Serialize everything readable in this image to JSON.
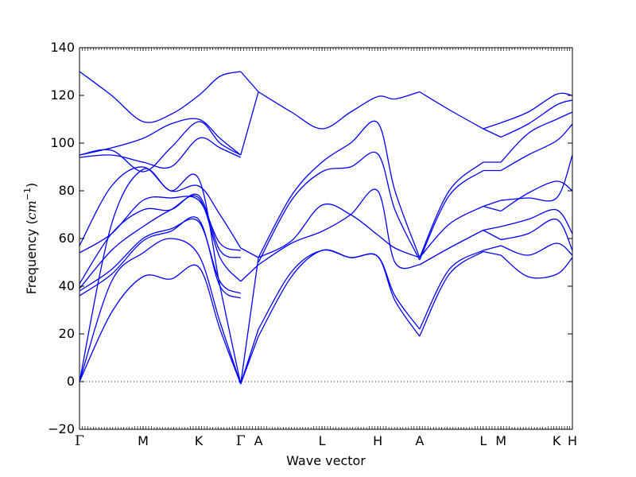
{
  "chart_data": {
    "type": "line",
    "title": "",
    "xlabel": "Wave vector",
    "ylabel_prefix": "Frequency (",
    "ylabel_unit_base": "cm",
    "ylabel_unit_exp": "−1",
    "ylabel_suffix": ")",
    "ylim": [
      -20,
      140
    ],
    "xlim": [
      0,
      10
    ],
    "y_ticks": [
      -20,
      0,
      20,
      40,
      60,
      80,
      100,
      120,
      140
    ],
    "y_tick_labels": [
      "−20",
      "0",
      "20",
      "40",
      "60",
      "80",
      "100",
      "120",
      "140"
    ],
    "grid": false,
    "line_color": "#0000ff",
    "zero_line_color": "#0000ff",
    "high_symmetry_points": [
      {
        "label": "Γ",
        "x": 0.0
      },
      {
        "label": "M",
        "x": 1.29
      },
      {
        "label": "K",
        "x": 2.42
      },
      {
        "label": "Γ",
        "x": 3.27
      },
      {
        "label": "A",
        "x": 3.63
      },
      {
        "label": "L",
        "x": 4.92
      },
      {
        "label": "H",
        "x": 6.05
      },
      {
        "label": "A",
        "x": 6.9
      },
      {
        "label": "L",
        "x": 8.19
      },
      {
        "label": "M",
        "x": 8.55
      },
      {
        "label": "K",
        "x": 9.68
      },
      {
        "label": "H",
        "x": 10.0
      }
    ],
    "series": [
      {
        "x": [
          0,
          0.65,
          1.29,
          1.85,
          2.42,
          2.85,
          3.27
        ],
        "y": [
          0,
          29,
          44,
          43,
          48,
          22,
          -1
        ]
      },
      {
        "x": [
          0,
          0.65,
          1.29,
          1.85,
          2.42,
          2.85,
          3.27
        ],
        "y": [
          0,
          42,
          54,
          60,
          53,
          25,
          -1
        ]
      },
      {
        "x": [
          0,
          0.65,
          1.29,
          1.85,
          2.42,
          2.85,
          3.27
        ],
        "y": [
          0,
          66,
          89,
          80,
          85,
          40,
          -1
        ]
      },
      {
        "x": [
          0,
          0.65,
          1.29,
          1.85,
          2.42,
          2.85,
          3.27
        ],
        "y": [
          36,
          45,
          59,
          63,
          68,
          40,
          35
        ]
      },
      {
        "x": [
          0,
          0.65,
          1.29,
          1.85,
          2.42,
          2.85,
          3.27
        ],
        "y": [
          38,
          47,
          60,
          64,
          67,
          42,
          37
        ]
      },
      {
        "x": [
          0,
          0.65,
          1.29,
          1.85,
          2.42,
          2.85,
          3.27
        ],
        "y": [
          39,
          55,
          65,
          72,
          77,
          52,
          42
        ]
      },
      {
        "x": [
          0,
          0.65,
          1.29,
          1.85,
          2.42,
          2.85,
          3.27
        ],
        "y": [
          41,
          62,
          72,
          72,
          78,
          55,
          52
        ]
      },
      {
        "x": [
          0,
          0.65,
          1.29,
          1.85,
          2.42,
          2.85,
          3.27
        ],
        "y": [
          54,
          62,
          76,
          77,
          76,
          58,
          55
        ]
      },
      {
        "x": [
          0,
          0.65,
          1.29,
          1.85,
          2.42,
          2.85,
          3.27
        ],
        "y": [
          57,
          82,
          90,
          80,
          82,
          70,
          56
        ]
      },
      {
        "x": [
          0,
          0.65,
          1.29,
          1.85,
          2.42,
          2.85,
          3.27
        ],
        "y": [
          94,
          95,
          92,
          90,
          102,
          98,
          94
        ]
      },
      {
        "x": [
          0,
          0.65,
          1.29,
          1.85,
          2.42,
          2.85,
          3.27
        ],
        "y": [
          95,
          97,
          88,
          98,
          109,
          100,
          95
        ]
      },
      {
        "x": [
          0,
          0.65,
          1.29,
          1.85,
          2.42,
          2.85,
          3.27
        ],
        "y": [
          95,
          98,
          102,
          108,
          110,
          102,
          95
        ]
      },
      {
        "x": [
          0,
          0.65,
          1.29,
          1.85,
          2.42,
          2.85,
          3.27
        ],
        "y": [
          130,
          120,
          109,
          112,
          120,
          128,
          130
        ]
      },
      {
        "x": [
          3.27,
          3.63
        ],
        "y": [
          130,
          121.5
        ]
      },
      {
        "x": [
          3.27,
          3.63
        ],
        "y": [
          95,
          121.5
        ]
      },
      {
        "x": [
          3.27,
          3.63
        ],
        "y": [
          56,
          52
        ]
      },
      {
        "x": [
          3.27,
          3.63
        ],
        "y": [
          -1,
          52
        ]
      },
      {
        "x": [
          3.27,
          3.63
        ],
        "y": [
          42,
          49
        ]
      },
      {
        "x": [
          3.27,
          3.63
        ],
        "y": [
          -1,
          22
        ]
      },
      {
        "x": [
          3.27,
          3.63
        ],
        "y": [
          -1,
          19
        ]
      },
      {
        "x": [
          3.63,
          4.3,
          4.92,
          5.5,
          6.05,
          6.4,
          6.9
        ],
        "y": [
          121.5,
          113,
          106,
          113,
          119.5,
          118.5,
          121.5
        ]
      },
      {
        "x": [
          3.63,
          4.3,
          4.92,
          5.5,
          6.05,
          6.4,
          6.9
        ],
        "y": [
          52,
          78,
          92,
          100,
          108.5,
          80,
          52
        ]
      },
      {
        "x": [
          3.63,
          4.3,
          4.92,
          5.5,
          6.05,
          6.4,
          6.9
        ],
        "y": [
          50,
          76,
          88,
          90,
          95.5,
          72,
          51
        ]
      },
      {
        "x": [
          3.63,
          4.3,
          4.92,
          5.5,
          6.05,
          6.4,
          6.9
        ],
        "y": [
          52,
          59,
          74,
          70,
          61.5,
          56,
          52
        ]
      },
      {
        "x": [
          3.63,
          4.3,
          4.92,
          5.5,
          6.05,
          6.4,
          6.9
        ],
        "y": [
          49,
          58,
          63,
          70,
          80,
          50,
          49
        ]
      },
      {
        "x": [
          3.63,
          4.3,
          4.92,
          5.5,
          6.05,
          6.4,
          6.9
        ],
        "y": [
          22,
          46,
          55,
          52,
          52.5,
          36,
          22
        ]
      },
      {
        "x": [
          3.63,
          4.3,
          4.92,
          5.5,
          6.05,
          6.4,
          6.9
        ],
        "y": [
          19,
          44,
          55,
          52,
          52.5,
          34,
          19
        ]
      },
      {
        "x": [
          6.9,
          7.5,
          8.19
        ],
        "y": [
          121.5,
          114,
          106
        ]
      },
      {
        "x": [
          6.9,
          7.5,
          8.19
        ],
        "y": [
          52,
          80,
          92
        ]
      },
      {
        "x": [
          6.9,
          7.5,
          8.19
        ],
        "y": [
          51,
          78,
          88.5
        ]
      },
      {
        "x": [
          6.9,
          7.5,
          8.19
        ],
        "y": [
          52,
          66,
          73.5
        ]
      },
      {
        "x": [
          6.9,
          7.5,
          8.19
        ],
        "y": [
          49,
          56,
          63.5
        ]
      },
      {
        "x": [
          6.9,
          7.5,
          8.19
        ],
        "y": [
          22,
          47,
          55
        ]
      },
      {
        "x": [
          6.9,
          7.5,
          8.19
        ],
        "y": [
          19,
          45,
          54.5
        ]
      },
      {
        "x": [
          8.19,
          8.55
        ],
        "y": [
          106,
          108.5
        ]
      },
      {
        "x": [
          8.19,
          8.55
        ],
        "y": [
          106,
          102.5
        ]
      },
      {
        "x": [
          8.19,
          8.55
        ],
        "y": [
          92,
          92
        ]
      },
      {
        "x": [
          8.19,
          8.55
        ],
        "y": [
          88.5,
          88.5
        ]
      },
      {
        "x": [
          8.19,
          8.55
        ],
        "y": [
          73.5,
          76
        ]
      },
      {
        "x": [
          8.19,
          8.55
        ],
        "y": [
          73.5,
          71.5
        ]
      },
      {
        "x": [
          8.19,
          8.55
        ],
        "y": [
          63.5,
          65
        ]
      },
      {
        "x": [
          8.19,
          8.55
        ],
        "y": [
          63.5,
          59.5
        ]
      },
      {
        "x": [
          8.19,
          8.55
        ],
        "y": [
          55,
          57
        ]
      },
      {
        "x": [
          8.19,
          8.55
        ],
        "y": [
          54.5,
          53
        ]
      },
      {
        "x": [
          8.55,
          9.1,
          9.68,
          10.0
        ],
        "y": [
          108.5,
          113,
          120.5,
          120
        ]
      },
      {
        "x": [
          8.55,
          9.1,
          9.68,
          10.0
        ],
        "y": [
          102.5,
          108,
          116,
          118
        ]
      },
      {
        "x": [
          8.55,
          9.1,
          9.68,
          10.0
        ],
        "y": [
          92,
          104,
          110,
          113
        ]
      },
      {
        "x": [
          8.55,
          9.1,
          9.68,
          10.0
        ],
        "y": [
          88.5,
          95,
          101,
          108
        ]
      },
      {
        "x": [
          8.55,
          9.1,
          9.68,
          10.0
        ],
        "y": [
          76,
          77,
          77,
          95
        ]
      },
      {
        "x": [
          8.55,
          9.1,
          9.68,
          10.0
        ],
        "y": [
          71.5,
          79,
          84,
          80
        ]
      },
      {
        "x": [
          8.55,
          9.1,
          9.68,
          10.0
        ],
        "y": [
          65,
          68,
          72,
          62
        ]
      },
      {
        "x": [
          8.55,
          9.1,
          9.68,
          10.0
        ],
        "y": [
          59.5,
          62,
          68,
          55
        ]
      },
      {
        "x": [
          8.55,
          9.1,
          9.68,
          10.0
        ],
        "y": [
          57,
          53,
          58,
          53
        ]
      },
      {
        "x": [
          8.55,
          9.1,
          9.68,
          10.0
        ],
        "y": [
          53,
          44,
          45,
          52
        ]
      }
    ]
  }
}
